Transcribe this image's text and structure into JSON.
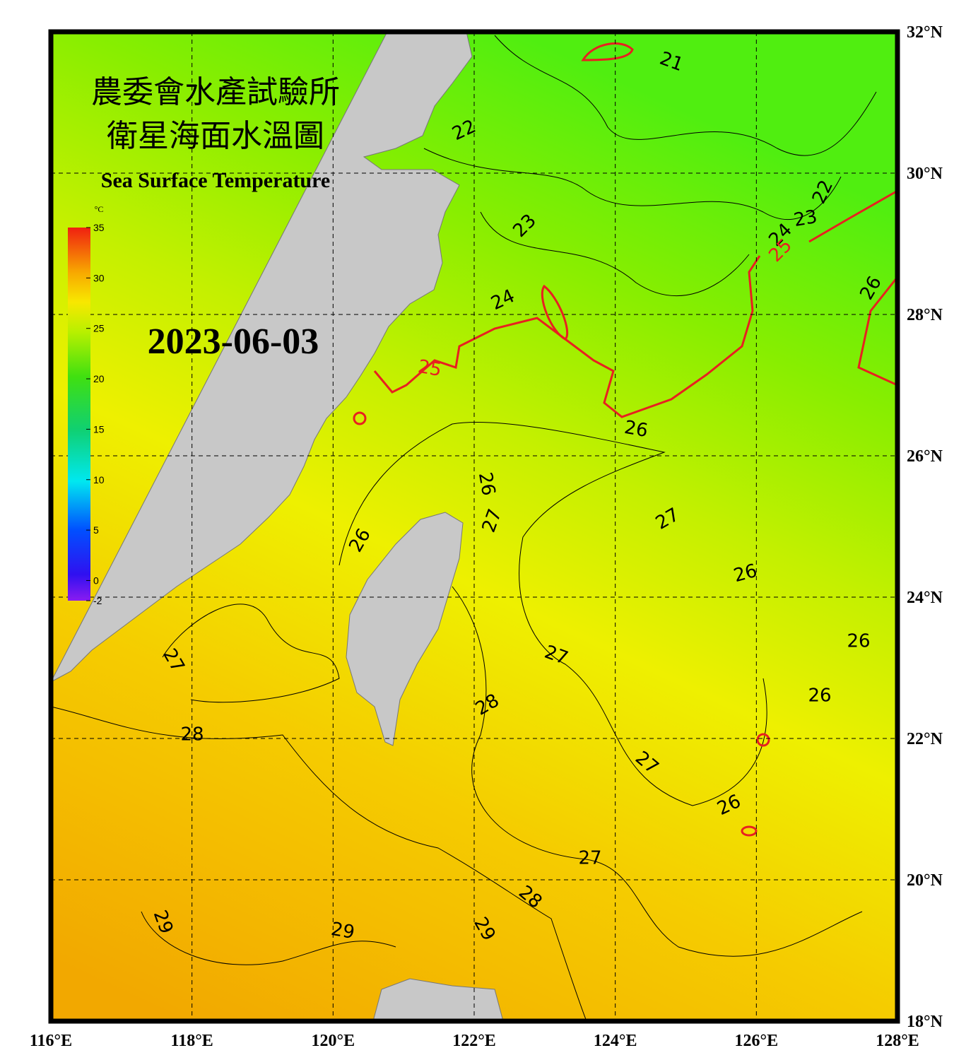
{
  "header": {
    "title_zh_1": "農委會水產試驗所",
    "title_zh_2": "衛星海面水溫圖",
    "title_en": "Sea Surface Temperature",
    "date": "2023-06-03"
  },
  "colorbar": {
    "unit": "°C",
    "range": [
      -2,
      35
    ],
    "ticks": [
      35,
      30,
      25,
      20,
      15,
      10,
      5,
      0,
      -2
    ]
  },
  "map": {
    "xlim": [
      116,
      128
    ],
    "ylim": [
      18,
      32
    ],
    "xticks": [
      {
        "value": 116,
        "label": "116°E"
      },
      {
        "value": 118,
        "label": "118°E"
      },
      {
        "value": 120,
        "label": "120°E"
      },
      {
        "value": 122,
        "label": "122°E"
      },
      {
        "value": 124,
        "label": "124°E"
      },
      {
        "value": 126,
        "label": "126°E"
      },
      {
        "value": 128,
        "label": "128°E"
      }
    ],
    "yticks": [
      {
        "value": 18,
        "label": "18°N"
      },
      {
        "value": 20,
        "label": "20°N"
      },
      {
        "value": 22,
        "label": "22°N"
      },
      {
        "value": 24,
        "label": "24°N"
      },
      {
        "value": 26,
        "label": "26°N"
      },
      {
        "value": 28,
        "label": "28°N"
      },
      {
        "value": 30,
        "label": "30°N"
      },
      {
        "value": 32,
        "label": "32°N"
      }
    ],
    "grid": true,
    "contour_labels": [
      {
        "value": 21,
        "color": "#000000"
      },
      {
        "value": 22,
        "color": "#000000"
      },
      {
        "value": 22,
        "color": "#000000"
      },
      {
        "value": 23,
        "color": "#000000"
      },
      {
        "value": 23,
        "color": "#000000"
      },
      {
        "value": 24,
        "color": "#000000"
      },
      {
        "value": 25,
        "color": "#e82020"
      },
      {
        "value": 26,
        "color": "#000000"
      },
      {
        "value": 24,
        "color": "#000000"
      },
      {
        "value": 25,
        "color": "#e82020"
      },
      {
        "value": 26,
        "color": "#000000"
      },
      {
        "value": 26,
        "color": "#000000"
      },
      {
        "value": 27,
        "color": "#000000"
      },
      {
        "value": 26,
        "color": "#000000"
      },
      {
        "value": 27,
        "color": "#000000"
      },
      {
        "value": 26,
        "color": "#000000"
      },
      {
        "value": 26,
        "color": "#000000"
      },
      {
        "value": 27,
        "color": "#000000"
      },
      {
        "value": 27,
        "color": "#000000"
      },
      {
        "value": 26,
        "color": "#000000"
      },
      {
        "value": 28,
        "color": "#000000"
      },
      {
        "value": 28,
        "color": "#000000"
      },
      {
        "value": 27,
        "color": "#000000"
      },
      {
        "value": 26,
        "color": "#000000"
      },
      {
        "value": 27,
        "color": "#000000"
      },
      {
        "value": 28,
        "color": "#000000"
      },
      {
        "value": 29,
        "color": "#000000"
      },
      {
        "value": 29,
        "color": "#000000"
      },
      {
        "value": 29,
        "color": "#000000"
      }
    ]
  }
}
